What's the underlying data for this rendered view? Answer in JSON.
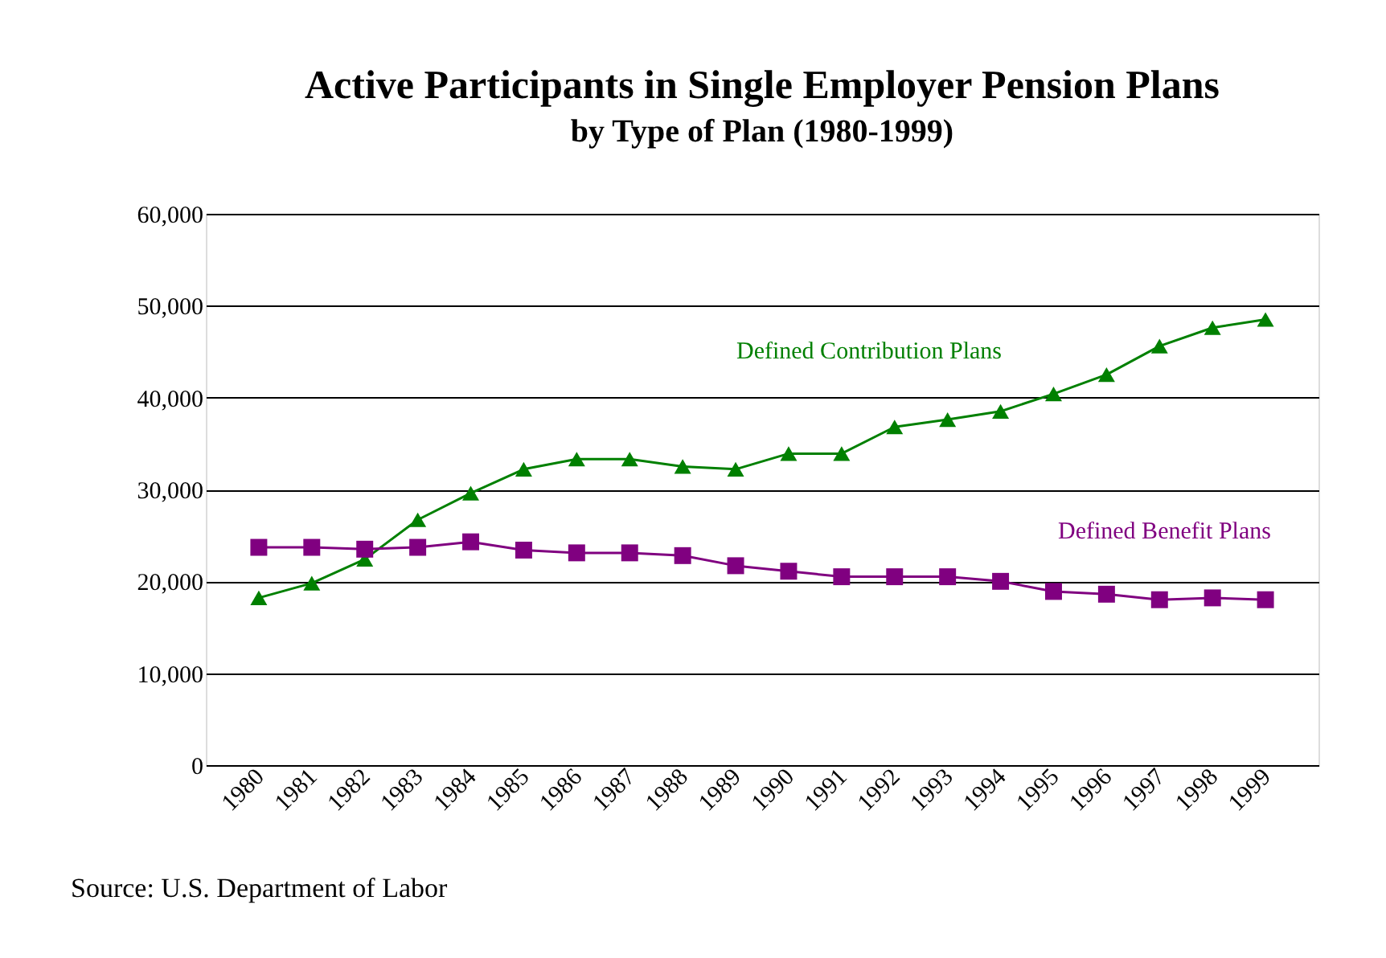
{
  "chart_data": {
    "type": "line",
    "title": "Active Participants in Single Employer Pension Plans",
    "subtitle": "by Type of Plan (1980-1999)",
    "categories": [
      "1980",
      "1981",
      "1982",
      "1983",
      "1984",
      "1985",
      "1986",
      "1987",
      "1988",
      "1989",
      "1990",
      "1991",
      "1992",
      "1993",
      "1994",
      "1995",
      "1996",
      "1997",
      "1998",
      "1999"
    ],
    "series": [
      {
        "name": "Defined Contribution Plans",
        "color": "#008000",
        "marker": "triangle",
        "values": [
          18200,
          19800,
          22400,
          26700,
          29600,
          32200,
          33300,
          33300,
          32500,
          32200,
          33900,
          33900,
          36800,
          37600,
          38500,
          40400,
          42500,
          45600,
          47600,
          48500
        ]
      },
      {
        "name": "Defined Benefit Plans",
        "color": "#800080",
        "marker": "square",
        "values": [
          23700,
          23700,
          23500,
          23700,
          24300,
          23400,
          23100,
          23100,
          22800,
          21700,
          21100,
          20500,
          20500,
          20500,
          20000,
          18900,
          18600,
          18000,
          18200,
          18000
        ]
      }
    ],
    "ylim": [
      0,
      60000
    ],
    "yticks": [
      0,
      {
        "value": 10000,
        "label": "10,000"
      },
      {
        "value": 20000,
        "label": "20,000"
      },
      {
        "value": 30000,
        "label": "30,000"
      },
      {
        "value": 40000,
        "label": "40,000"
      },
      {
        "value": 50000,
        "label": "50,000"
      },
      {
        "value": 60000,
        "label": "60,000"
      }
    ],
    "grid": "y",
    "line_style": "solid",
    "annotations": [
      "Source:  U.S. Department of Labor"
    ]
  }
}
